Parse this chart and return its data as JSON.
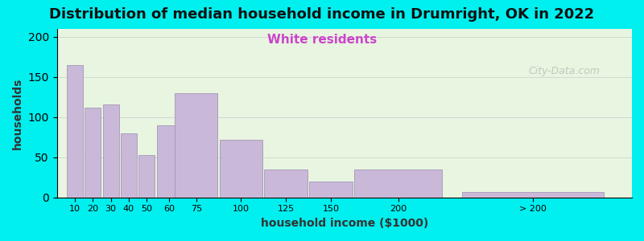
{
  "title": "Distribution of median household income in Drumright, OK in 2022",
  "subtitle": "White residents",
  "xlabel": "household income ($1000)",
  "ylabel": "households",
  "background_outer": "#00EFEF",
  "background_inner_top": "#e8f5e0",
  "background_inner_bottom": "#f5f0ff",
  "bar_color": "#c9b8d8",
  "bar_edge_color": "#9b8ab0",
  "categories": [
    "10",
    "20",
    "30",
    "40",
    "50",
    "60",
    "75",
    "100",
    "125",
    "150",
    "200",
    "> 200"
  ],
  "values": [
    165,
    112,
    116,
    80,
    53,
    90,
    130,
    72,
    35,
    20,
    35,
    7
  ],
  "bar_widths": [
    10,
    10,
    10,
    10,
    10,
    15,
    25,
    25,
    25,
    25,
    50,
    80
  ],
  "bar_lefts": [
    5,
    15,
    25,
    35,
    45,
    55,
    65,
    90,
    115,
    140,
    165,
    225
  ],
  "xlim": [
    0,
    320
  ],
  "ylim": [
    0,
    210
  ],
  "yticks": [
    0,
    50,
    100,
    150,
    200
  ],
  "title_fontsize": 13,
  "subtitle_fontsize": 11,
  "subtitle_color": "#cc44cc",
  "axis_label_fontsize": 10,
  "watermark": "City-Data.com"
}
